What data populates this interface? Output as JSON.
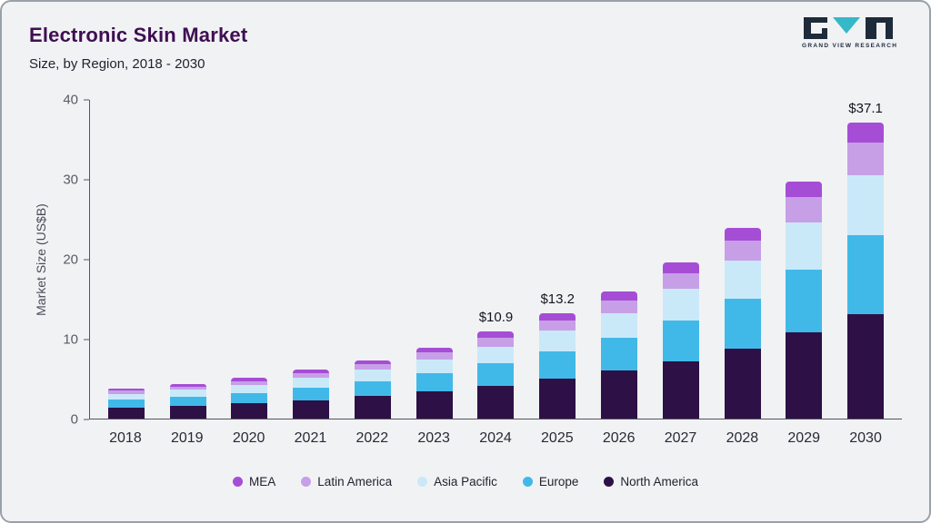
{
  "header": {
    "title": "Electronic Skin Market",
    "subtitle": "Size, by Region, 2018 - 2030",
    "brand": "GRAND VIEW RESEARCH"
  },
  "chart_data": {
    "type": "bar",
    "stacked": true,
    "title": "Electronic Skin Market",
    "subtitle": "Size, by Region, 2018 - 2030",
    "ylabel": "Market Size (US$B)",
    "ylim": [
      0,
      40
    ],
    "yticks": [
      40,
      30,
      20,
      10,
      0
    ],
    "grid": false,
    "legend_position": "bottom",
    "categories": [
      "2018",
      "2019",
      "2020",
      "2021",
      "2022",
      "2023",
      "2024",
      "2025",
      "2026",
      "2027",
      "2028",
      "2029",
      "2030"
    ],
    "series": [
      {
        "name": "North America",
        "color": "#2d1045",
        "values": [
          1.4,
          1.6,
          1.9,
          2.3,
          2.8,
          3.4,
          4.1,
          5.0,
          6.0,
          7.2,
          8.8,
          10.8,
          13.1
        ]
      },
      {
        "name": "Europe",
        "color": "#41b9e8",
        "values": [
          1.0,
          1.1,
          1.3,
          1.6,
          1.9,
          2.3,
          2.8,
          3.4,
          4.1,
          5.1,
          6.2,
          7.8,
          9.9
        ]
      },
      {
        "name": "Asia Pacific",
        "color": "#c9e9f9",
        "values": [
          0.7,
          0.9,
          1.0,
          1.2,
          1.4,
          1.7,
          2.1,
          2.6,
          3.1,
          3.9,
          4.8,
          6.0,
          7.5
        ]
      },
      {
        "name": "Latin America",
        "color": "#c79fe6",
        "values": [
          0.4,
          0.4,
          0.5,
          0.6,
          0.7,
          0.9,
          1.1,
          1.3,
          1.6,
          2.0,
          2.5,
          3.1,
          4.0
        ]
      },
      {
        "name": "MEA",
        "color": "#a64dd6",
        "values": [
          0.2,
          0.3,
          0.4,
          0.4,
          0.5,
          0.6,
          0.8,
          0.9,
          1.1,
          1.3,
          1.6,
          2.0,
          2.6
        ]
      }
    ],
    "annotations": [
      {
        "category": "2024",
        "label": "$10.9"
      },
      {
        "category": "2025",
        "label": "$13.2"
      },
      {
        "category": "2030",
        "label": "$37.1"
      }
    ],
    "legend": [
      {
        "name": "MEA",
        "color": "#a64dd6"
      },
      {
        "name": "Latin America",
        "color": "#c79fe6"
      },
      {
        "name": "Asia Pacific",
        "color": "#c9e9f9"
      },
      {
        "name": "Europe",
        "color": "#41b9e8"
      },
      {
        "name": "North America",
        "color": "#2d1045"
      }
    ]
  }
}
